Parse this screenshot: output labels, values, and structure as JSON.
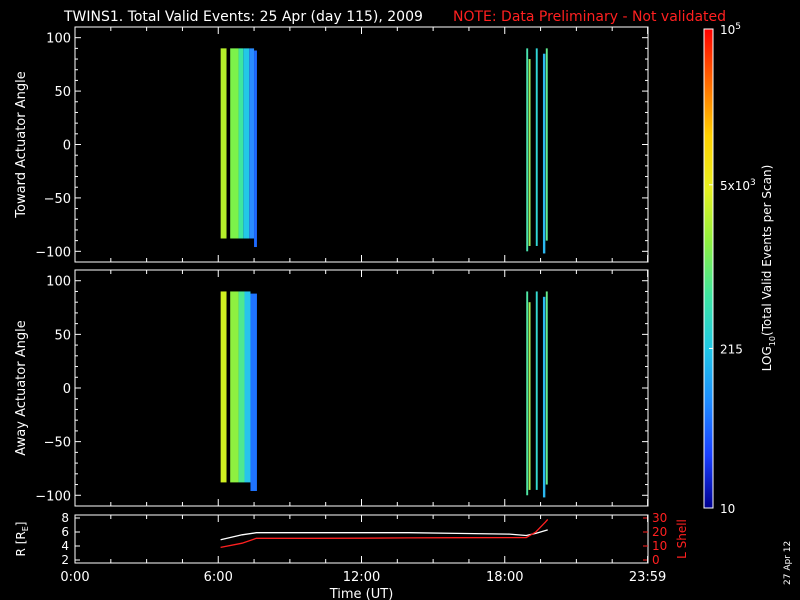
{
  "header": {
    "title": "TWINS1. Total Valid Events: 25 Apr (day 115), 2009",
    "note": "NOTE: Data Preliminary - Not validated"
  },
  "chart_data": [
    {
      "type": "heatmap",
      "ylabel": "Toward Actuator Angle",
      "ylim": [
        -110,
        110
      ],
      "xlim": [
        0,
        24
      ],
      "yticks": [
        "100",
        "50",
        "0",
        "−50",
        "−100"
      ],
      "ytick_values": [
        100,
        50,
        0,
        -50,
        -100
      ],
      "strips": [
        {
          "x0": 6.1,
          "x1": 6.35,
          "y0": -88,
          "y1": 90,
          "color": "#b6ee2a"
        },
        {
          "x0": 6.35,
          "x1": 6.5,
          "y0": -88,
          "y1": 90,
          "color": "#000000"
        },
        {
          "x0": 6.5,
          "x1": 6.85,
          "y0": -88,
          "y1": 90,
          "color": "#7cf24a"
        },
        {
          "x0": 6.85,
          "x1": 7.05,
          "y0": -88,
          "y1": 90,
          "color": "#3ee6a0"
        },
        {
          "x0": 7.05,
          "x1": 7.3,
          "y0": -88,
          "y1": 90,
          "color": "#23c8e6"
        },
        {
          "x0": 7.3,
          "x1": 7.5,
          "y0": -88,
          "y1": 90,
          "color": "#2a8cff"
        },
        {
          "x0": 7.5,
          "x1": 7.62,
          "y0": -96,
          "y1": 88,
          "color": "#1e6aff"
        },
        {
          "x0": 18.9,
          "x1": 18.98,
          "y0": -100,
          "y1": 90,
          "color": "#49e3b0"
        },
        {
          "x0": 19.0,
          "x1": 19.08,
          "y0": -95,
          "y1": 80,
          "color": "#9cf05a"
        },
        {
          "x0": 19.3,
          "x1": 19.38,
          "y0": -95,
          "y1": 90,
          "color": "#30d6d6"
        },
        {
          "x0": 19.6,
          "x1": 19.7,
          "y0": -102,
          "y1": 85,
          "color": "#2bb8f0"
        },
        {
          "x0": 19.72,
          "x1": 19.8,
          "y0": -90,
          "y1": 90,
          "color": "#62ec8e"
        }
      ]
    },
    {
      "type": "heatmap",
      "ylabel": "Away Actuator Angle",
      "ylim": [
        -110,
        110
      ],
      "xlim": [
        0,
        24
      ],
      "yticks": [
        "100",
        "50",
        "0",
        "−50",
        "−100"
      ],
      "ytick_values": [
        100,
        50,
        0,
        -50,
        -100
      ],
      "strips": [
        {
          "x0": 6.1,
          "x1": 6.35,
          "y0": -88,
          "y1": 90,
          "color": "#d0f020"
        },
        {
          "x0": 6.35,
          "x1": 6.5,
          "y0": -88,
          "y1": 90,
          "color": "#000000"
        },
        {
          "x0": 6.5,
          "x1": 6.85,
          "y0": -88,
          "y1": 90,
          "color": "#8ef040"
        },
        {
          "x0": 6.85,
          "x1": 7.1,
          "y0": -88,
          "y1": 90,
          "color": "#4ee890"
        },
        {
          "x0": 7.1,
          "x1": 7.35,
          "y0": -88,
          "y1": 90,
          "color": "#27c4ec"
        },
        {
          "x0": 7.35,
          "x1": 7.62,
          "y0": -96,
          "y1": 88,
          "color": "#1f74ff"
        },
        {
          "x0": 18.9,
          "x1": 18.98,
          "y0": -100,
          "y1": 90,
          "color": "#4fe6a4"
        },
        {
          "x0": 19.0,
          "x1": 19.08,
          "y0": -95,
          "y1": 80,
          "color": "#a6f052"
        },
        {
          "x0": 19.3,
          "x1": 19.38,
          "y0": -95,
          "y1": 90,
          "color": "#34d8d0"
        },
        {
          "x0": 19.6,
          "x1": 19.7,
          "y0": -102,
          "y1": 85,
          "color": "#2bb8f0"
        },
        {
          "x0": 19.72,
          "x1": 19.8,
          "y0": -90,
          "y1": 90,
          "color": "#66ec8a"
        }
      ]
    },
    {
      "type": "line",
      "ylabel": "R [R",
      "ylabel_sub": "E",
      "ylabel_close": "]",
      "y2label": "L Shell",
      "xlabel": "Time (UT)",
      "xlim": [
        0,
        24
      ],
      "ylim": [
        2,
        8
      ],
      "y2lim": [
        0,
        30
      ],
      "yticks": [
        "8",
        "6",
        "4",
        "2"
      ],
      "ytick_values": [
        8,
        6,
        4,
        2
      ],
      "y2ticks": [
        "30",
        "20",
        "10",
        "0"
      ],
      "y2tick_values": [
        30,
        20,
        10,
        0
      ],
      "xticks": [
        "0:00",
        "6:00",
        "12:00",
        "18:00",
        "23:59"
      ],
      "xtick_values": [
        0,
        6,
        12,
        18,
        23.983
      ],
      "minor_xticks": [
        1.5,
        3,
        4.5,
        7.5,
        9,
        10.5,
        13.5,
        15,
        16.5,
        19.5,
        21,
        22.5
      ],
      "series": [
        {
          "color": "#ffffff",
          "axis": "left",
          "x": [
            6.1,
            7.0,
            7.6,
            10,
            12,
            14,
            16,
            18.2,
            18.9,
            19.3,
            19.8
          ],
          "y": [
            4.9,
            5.6,
            5.9,
            5.9,
            5.9,
            5.9,
            5.8,
            5.7,
            5.5,
            5.8,
            6.3
          ]
        },
        {
          "color": "#ff2020",
          "axis": "right",
          "x": [
            6.1,
            7.0,
            7.6,
            10,
            12,
            14,
            16,
            18.2,
            18.9,
            19.3,
            19.7,
            19.8
          ],
          "y": [
            9,
            12,
            15.5,
            15.5,
            15.6,
            15.8,
            15.9,
            16,
            16,
            20,
            27,
            29
          ]
        }
      ]
    }
  ],
  "colorbar": {
    "scale": "log",
    "range": [
      10,
      100000
    ],
    "label": "LOG",
    "label_sub": "10",
    "label_rest": "(Total Valid Events per Scan)",
    "ticks": [
      {
        "value": 100000,
        "base": "10",
        "sup": "5",
        "sub": ""
      },
      {
        "value": 5000,
        "base": "5x10",
        "sup": "3",
        "sub": ""
      },
      {
        "value": 215,
        "base": "215",
        "sup": "",
        "sub": ""
      },
      {
        "value": 10,
        "base": "10",
        "sup": "",
        "sub": ""
      }
    ],
    "stops": [
      "#ff0000",
      "#ff6a00",
      "#ffd000",
      "#e8f020",
      "#8ef040",
      "#3ee6a0",
      "#20c8e6",
      "#1e8cff",
      "#1a40ff",
      "#000090"
    ]
  },
  "footer": {
    "date": "27 Apr 12"
  },
  "colors": {
    "background": "#000000",
    "foreground": "#ffffff",
    "note": "#ff2020"
  }
}
